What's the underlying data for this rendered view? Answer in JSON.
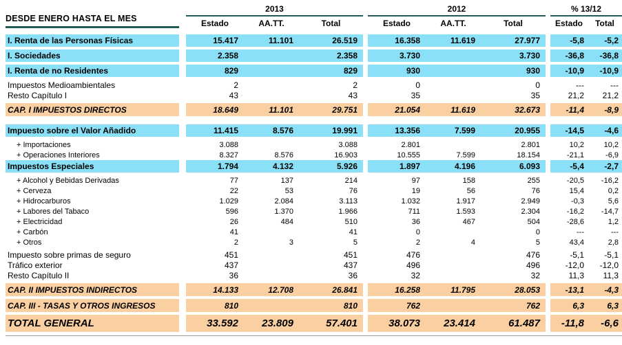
{
  "colors": {
    "highlight_cyan": "#8AE0F6",
    "highlight_orange": "#FACFA2",
    "rule_teal": "#215955"
  },
  "header": {
    "row_label_title": "DESDE ENERO HASTA EL MES",
    "groups": [
      {
        "title": "2013",
        "cols": [
          "Estado",
          "AA.TT.",
          "Total"
        ]
      },
      {
        "title": "2012",
        "cols": [
          "Estado",
          "AA.TT.",
          "Total"
        ]
      },
      {
        "title": "% 13/12",
        "cols": [
          "Estado",
          "Total"
        ]
      }
    ]
  },
  "table": {
    "rows": [
      {
        "type": "cyan",
        "label": "I. Renta de las Personas Físicas",
        "values": [
          "15.417",
          "11.101",
          "26.519",
          "16.358",
          "11.619",
          "27.977",
          "-5,8",
          "-5,2"
        ]
      },
      {
        "type": "cyan",
        "label": "I. Sociedades",
        "values": [
          "2.358",
          "",
          "2.358",
          "3.730",
          "",
          "3.730",
          "-36,8",
          "-36,8"
        ]
      },
      {
        "type": "cyan",
        "label": "I. Renta de no Residentes",
        "values": [
          "829",
          "",
          "829",
          "930",
          "",
          "930",
          "-10,9",
          "-10,9"
        ]
      },
      {
        "type": "plain",
        "label": "Impuestos Medioambientales",
        "values": [
          "2",
          "",
          "2",
          "0",
          "",
          "0",
          "---",
          "---"
        ]
      },
      {
        "type": "plain",
        "label": "Resto Capítulo I",
        "values": [
          "43",
          "",
          "43",
          "35",
          "",
          "35",
          "21,2",
          "21,2"
        ]
      },
      {
        "type": "orange",
        "label": "CAP. I IMPUESTOS DIRECTOS",
        "values": [
          "18.649",
          "11.101",
          "29.751",
          "21.054",
          "11.619",
          "32.673",
          "-11,4",
          "-8,9"
        ]
      },
      {
        "type": "spacer",
        "h": 8
      },
      {
        "type": "cyan",
        "label": "Impuesto sobre el Valor Añadido",
        "values": [
          "11.415",
          "8.576",
          "19.991",
          "13.356",
          "7.599",
          "20.955",
          "-14,5",
          "-4,6"
        ]
      },
      {
        "type": "sub",
        "label": "+ Importaciones",
        "values": [
          "3.088",
          "",
          "3.088",
          "2.801",
          "",
          "2.801",
          "10,2",
          "10,2"
        ]
      },
      {
        "type": "sub",
        "label": "+ Operaciones Interiores",
        "values": [
          "8.327",
          "8.576",
          "16.903",
          "10.555",
          "7.599",
          "18.154",
          "-21,1",
          "-6,9"
        ]
      },
      {
        "type": "cyan",
        "label": "Impuestos Especiales",
        "values": [
          "1.794",
          "4.132",
          "5.926",
          "1.897",
          "4.196",
          "6.093",
          "-5,4",
          "-2,7"
        ]
      },
      {
        "type": "sub",
        "label": "+ Alcohol y Bebidas Derivadas",
        "values": [
          "77",
          "137",
          "214",
          "97",
          "158",
          "255",
          "-20,5",
          "-16,2"
        ]
      },
      {
        "type": "sub",
        "label": "+ Cerveza",
        "values": [
          "22",
          "53",
          "76",
          "19",
          "56",
          "76",
          "15,4",
          "0,2"
        ]
      },
      {
        "type": "sub",
        "label": "+ Hidrocarburos",
        "values": [
          "1.029",
          "2.084",
          "3.113",
          "1.032",
          "1.917",
          "2.949",
          "-0,3",
          "5,6"
        ]
      },
      {
        "type": "sub",
        "label": "+ Labores del Tabaco",
        "values": [
          "596",
          "1.370",
          "1.966",
          "711",
          "1.593",
          "2.304",
          "-16,2",
          "-14,7"
        ]
      },
      {
        "type": "sub",
        "label": "+ Electricidad",
        "values": [
          "26",
          "484",
          "510",
          "36",
          "467",
          "504",
          "-28,6",
          "1,2"
        ]
      },
      {
        "type": "sub",
        "label": "+ Carbón",
        "values": [
          "41",
          "",
          "41",
          "0",
          "",
          "0",
          "---",
          "---"
        ]
      },
      {
        "type": "sub",
        "label": "+ Otros",
        "values": [
          "2",
          "3",
          "5",
          "2",
          "4",
          "5",
          "43,4",
          "2,8"
        ]
      },
      {
        "type": "spacer",
        "h": 3
      },
      {
        "type": "plain",
        "label": "Impuesto sobre primas de seguro",
        "values": [
          "451",
          "",
          "451",
          "476",
          "",
          "476",
          "-5,1",
          "-5,1"
        ]
      },
      {
        "type": "plain",
        "label": "Tráfico exterior",
        "values": [
          "437",
          "",
          "437",
          "496",
          "",
          "496",
          "-12,0",
          "-12,0"
        ]
      },
      {
        "type": "plain",
        "label": "Resto Capítulo II",
        "values": [
          "36",
          "",
          "36",
          "32",
          "",
          "32",
          "11,3",
          "11,3"
        ]
      },
      {
        "type": "orange",
        "label": "CAP. II IMPUESTOS INDIRECTOS",
        "values": [
          "14.133",
          "12.708",
          "26.841",
          "16.258",
          "11.795",
          "28.053",
          "-13,1",
          "-4,3"
        ]
      },
      {
        "type": "orange",
        "label": "CAP. III - TASAS Y OTROS INGRESOS",
        "values": [
          "810",
          "",
          "810",
          "762",
          "",
          "762",
          "6,3",
          "6,3"
        ]
      },
      {
        "type": "total",
        "label": "TOTAL GENERAL",
        "values": [
          "33.592",
          "23.809",
          "57.401",
          "38.073",
          "23.414",
          "61.487",
          "-11,8",
          "-6,6"
        ]
      }
    ]
  }
}
